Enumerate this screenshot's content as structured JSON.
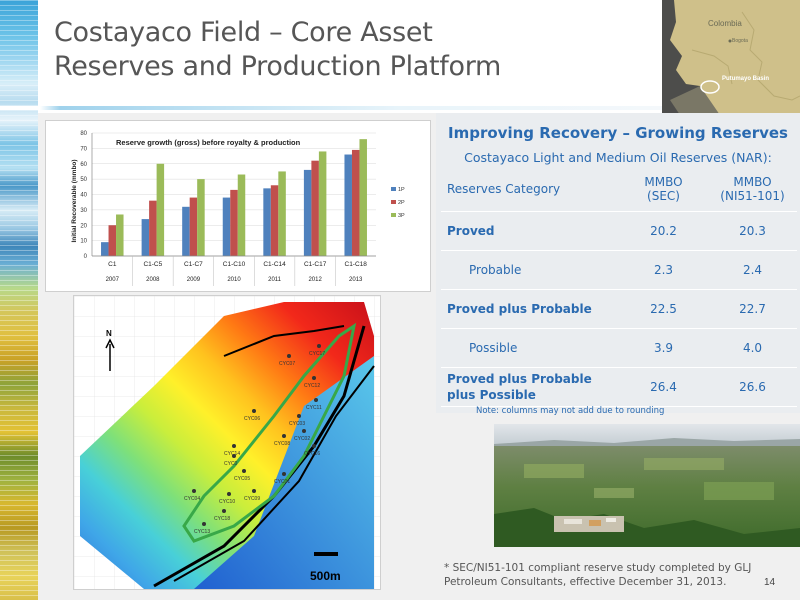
{
  "title": {
    "line1": "Costayaco Field – Core Asset",
    "line2": "Reserves and Production Platform"
  },
  "locator_map": {
    "country": "Colombia",
    "city": "Bogota",
    "basin": "Putumayo Basin"
  },
  "chart_data": {
    "type": "bar",
    "title": "Reserve growth (gross) before royalty & production",
    "ylabel": "Initial Recoverable (mmbo)",
    "xlabel": "",
    "ylim": [
      0,
      80
    ],
    "yticks": [
      0,
      10,
      20,
      30,
      40,
      50,
      60,
      70,
      80
    ],
    "categories": [
      "C1",
      "C1-C5",
      "C1-C7",
      "C1-C10",
      "C1-C14",
      "C1-C17",
      "C1-C18"
    ],
    "years": [
      "2007",
      "2008",
      "2009",
      "2010",
      "2011",
      "2012",
      "2013"
    ],
    "series": [
      {
        "name": "1P",
        "color": "#4f81bd",
        "values": [
          9,
          24,
          32,
          38,
          44,
          56,
          66
        ]
      },
      {
        "name": "2P",
        "color": "#c0504d",
        "values": [
          20,
          36,
          38,
          43,
          46,
          62,
          69
        ]
      },
      {
        "name": "3P",
        "color": "#9bbb59",
        "values": [
          27,
          60,
          50,
          53,
          55,
          68,
          76
        ]
      }
    ],
    "legend": "right"
  },
  "field_map": {
    "north_label": "N",
    "scale_label": "500m",
    "wells": [
      "CYC17",
      "CYC07",
      "CYC12",
      "CYC11",
      "CYC03",
      "CYC06",
      "CYC08",
      "CYC02",
      "CYC14",
      "CYC16",
      "CYC0",
      "CYC05",
      "CYC01",
      "CYC09",
      "CYC04",
      "CYC10",
      "CYC18",
      "CYC13"
    ]
  },
  "reserves": {
    "heading": "Improving Recovery – Growing Reserves",
    "subheading": "Costayaco Light and Medium Oil Reserves (NAR):",
    "col_category": "Reserves Category",
    "col_sec": [
      "MMBO",
      "(SEC)"
    ],
    "col_ni": [
      "MMBO",
      "(NI51-101)"
    ],
    "rows": [
      {
        "category": "Proved",
        "sec": "20.2",
        "ni": "20.3"
      },
      {
        "category": "Probable",
        "sec": "2.3",
        "ni": "2.4"
      },
      {
        "category": "Proved plus Probable",
        "sec": "22.5",
        "ni": "22.7"
      },
      {
        "category": "Possible",
        "sec": "3.9",
        "ni": "4.0"
      },
      {
        "category": "Proved plus Probable plus Possible",
        "sec": "26.4",
        "ni": "26.6"
      }
    ],
    "note": "Note: columns may not add due to rounding"
  },
  "footnote": "* SEC/NI51-101 compliant reserve study completed by GLJ Petroleum Consultants, effective December 31, 2013.",
  "page_number": "14"
}
